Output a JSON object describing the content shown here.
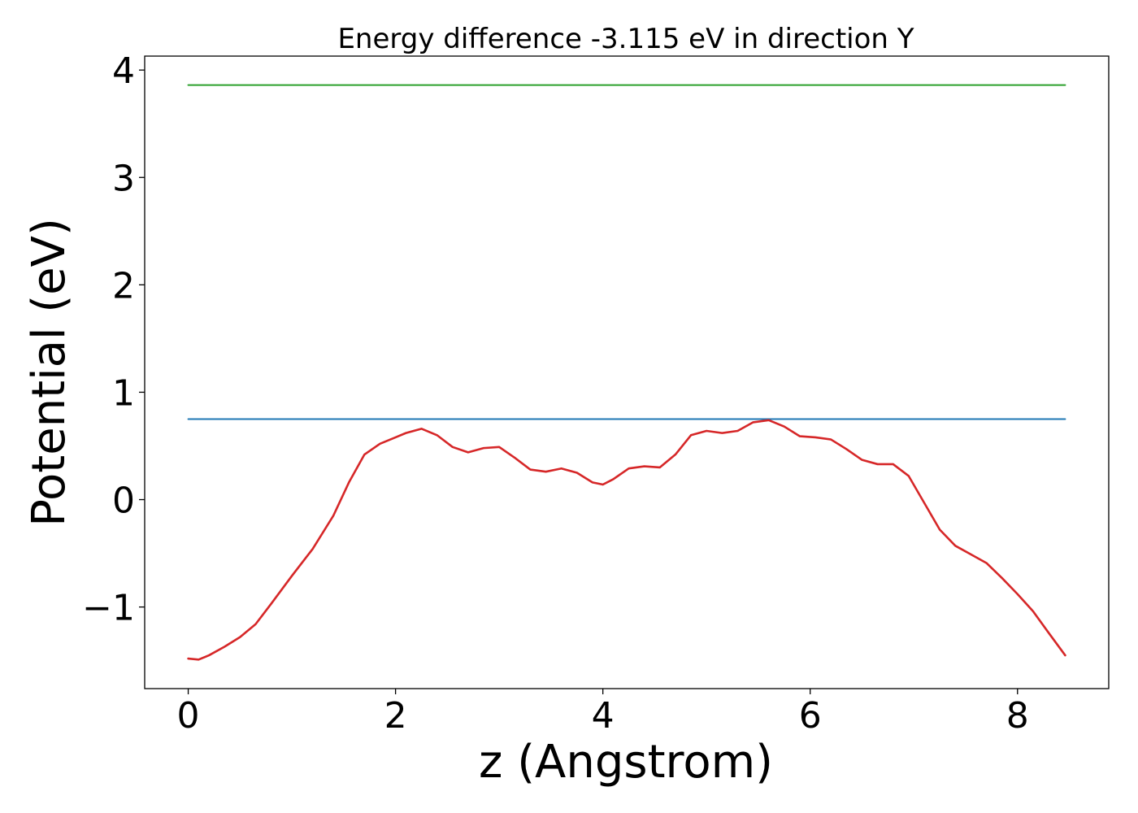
{
  "chart_data": {
    "type": "line",
    "title": "Energy difference -3.115 eV in direction Y",
    "xlabel": "z (Angstrom)",
    "ylabel": "Potential (eV)",
    "xlim": [
      -0.42,
      8.88
    ],
    "ylim": [
      -1.76,
      4.13
    ],
    "x_ticks": [
      0,
      2,
      4,
      6,
      8
    ],
    "x_tick_labels": [
      "0",
      "2",
      "4",
      "6",
      "8"
    ],
    "y_ticks": [
      -1,
      0,
      1,
      2,
      3,
      4
    ],
    "y_tick_labels": [
      "−1",
      "0",
      "1",
      "2",
      "3",
      "4"
    ],
    "grid": false,
    "series": [
      {
        "color": "#2ca02c",
        "x": [
          0,
          8.46
        ],
        "y": [
          3.86,
          3.86
        ]
      },
      {
        "color": "#1f77b4",
        "x": [
          0,
          8.46
        ],
        "y": [
          0.75,
          0.75
        ]
      },
      {
        "color": "#d62728",
        "x": [
          0,
          0.1,
          0.2,
          0.35,
          0.5,
          0.65,
          0.8,
          1.0,
          1.2,
          1.4,
          1.55,
          1.7,
          1.85,
          2.0,
          2.1,
          2.25,
          2.4,
          2.55,
          2.7,
          2.85,
          3.0,
          3.15,
          3.3,
          3.45,
          3.6,
          3.75,
          3.9,
          4.0,
          4.1,
          4.25,
          4.4,
          4.55,
          4.7,
          4.85,
          5.0,
          5.15,
          5.3,
          5.45,
          5.6,
          5.75,
          5.9,
          6.05,
          6.2,
          6.35,
          6.5,
          6.65,
          6.8,
          6.95,
          7.1,
          7.25,
          7.4,
          7.55,
          7.7,
          7.85,
          8.0,
          8.15,
          8.3,
          8.46
        ],
        "y": [
          -1.48,
          -1.49,
          -1.45,
          -1.37,
          -1.28,
          -1.16,
          -0.97,
          -0.71,
          -0.46,
          -0.15,
          0.16,
          0.42,
          0.52,
          0.58,
          0.62,
          0.66,
          0.6,
          0.49,
          0.44,
          0.48,
          0.49,
          0.39,
          0.28,
          0.26,
          0.29,
          0.25,
          0.16,
          0.14,
          0.19,
          0.29,
          0.31,
          0.3,
          0.42,
          0.6,
          0.64,
          0.62,
          0.64,
          0.72,
          0.74,
          0.68,
          0.59,
          0.58,
          0.56,
          0.47,
          0.37,
          0.33,
          0.33,
          0.22,
          -0.03,
          -0.28,
          -0.43,
          -0.51,
          -0.59,
          -0.73,
          -0.88,
          -1.04,
          -1.24,
          -1.45
        ]
      }
    ]
  }
}
